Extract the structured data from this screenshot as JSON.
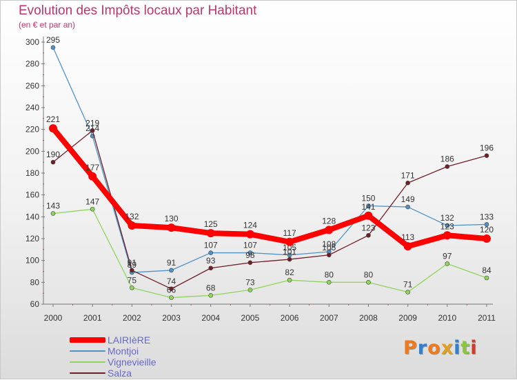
{
  "chart_data": {
    "type": "line",
    "title": "Evolution des Impôts locaux par Habitant",
    "subtitle": "(en € et par an)",
    "xlabel": "",
    "ylabel": "",
    "x": [
      "2000",
      "2001",
      "2002",
      "2003",
      "2004",
      "2005",
      "2006",
      "2007",
      "2008",
      "2009",
      "2010",
      "2011"
    ],
    "ylim": [
      60,
      300
    ],
    "yticks": [
      60,
      80,
      100,
      120,
      140,
      160,
      180,
      200,
      220,
      240,
      260,
      280,
      300
    ],
    "grid": false,
    "legend_position": "bottom-left",
    "series": [
      {
        "name": "LAIRIèRE",
        "color": "#ff0000",
        "values": [
          221,
          177,
          132,
          130,
          125,
          124,
          117,
          128,
          141,
          113,
          123,
          120
        ]
      },
      {
        "name": "Montjoi",
        "color": "#4f92c9",
        "values": [
          295,
          214,
          89,
          91,
          107,
          107,
          105,
          108,
          150,
          149,
          132,
          133
        ]
      },
      {
        "name": "Vignevieille",
        "color": "#8ed65a",
        "values": [
          143,
          147,
          75,
          66,
          68,
          73,
          82,
          80,
          80,
          71,
          97,
          84
        ]
      },
      {
        "name": "Salza",
        "color": "#6e1e26",
        "values": [
          190,
          219,
          91,
          74,
          93,
          98,
          101,
          105,
          123,
          171,
          186,
          196
        ]
      }
    ]
  },
  "logo": {
    "text": "Proxiti",
    "letters": [
      "P",
      "r",
      "o",
      "x",
      "i",
      "t",
      "i"
    ],
    "colors": [
      "#f07a1a",
      "#2f7fd2",
      "#f07a1a",
      "#e2a020",
      "#2f7fd2",
      "#8cc63f",
      "#d43a2a"
    ]
  }
}
